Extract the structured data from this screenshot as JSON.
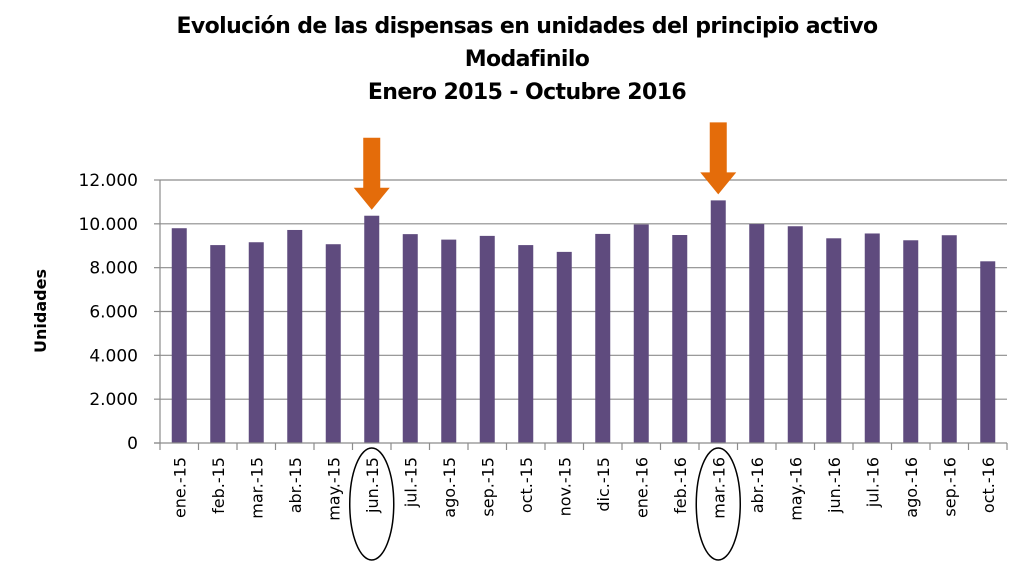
{
  "chart_data": {
    "type": "bar",
    "title": [
      "Evolución de las dispensas en unidades del principio activo",
      "Modafinilo",
      "Enero 2015 - Octubre 2016"
    ],
    "xlabel": "",
    "ylabel": "Unidades",
    "ylim": [
      0,
      12000
    ],
    "yticks": [
      0,
      2000,
      4000,
      6000,
      8000,
      10000,
      12000
    ],
    "ytick_labels": [
      "0",
      "2.000",
      "4.000",
      "6.000",
      "8.000",
      "10.000",
      "12.000"
    ],
    "grid": true,
    "legend": "none",
    "categories": [
      "ene.-15",
      "feb.-15",
      "mar.-15",
      "abr.-15",
      "may.-15",
      "jun.-15",
      "jul.-15",
      "ago.-15",
      "sep.-15",
      "oct.-15",
      "nov.-15",
      "dic.-15",
      "ene.-16",
      "feb.-16",
      "mar.-16",
      "abr.-16",
      "may.-16",
      "jun.-16",
      "jul.-16",
      "ago.-16",
      "sep.-16",
      "oct.-16"
    ],
    "values": [
      9800,
      9030,
      9160,
      9720,
      9070,
      10370,
      9530,
      9280,
      9450,
      9030,
      8720,
      9540,
      9970,
      9490,
      11070,
      9990,
      9890,
      9340,
      9560,
      9250,
      9480,
      8290
    ],
    "bar_color": "#5f4b7e",
    "annotations": [
      {
        "type": "arrow",
        "category": "jun.-15",
        "color": "#e46c0a"
      },
      {
        "type": "arrow",
        "category": "mar.-16",
        "color": "#e46c0a"
      },
      {
        "type": "circle-label",
        "category": "jun.-15"
      },
      {
        "type": "circle-label",
        "category": "mar.-16"
      }
    ]
  }
}
